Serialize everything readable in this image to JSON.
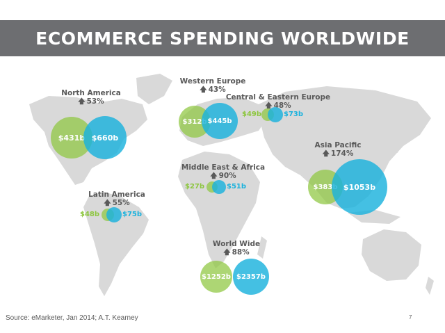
{
  "title": "ECOMMERCE SPENDING WORLDWIDE",
  "colors": {
    "title_bar": "#6d6e71",
    "spend_2013": "#8dc63f",
    "spend_2018": "#1bb2dd",
    "land": "#d9d9d9"
  },
  "regions": {
    "north_america": {
      "name": "North America",
      "growth": "53%",
      "value_a": "$431b",
      "value_b": "$660b"
    },
    "western_europe": {
      "name": "Western Europe",
      "growth": "43%",
      "value_a": "$312b",
      "value_b": "$445b"
    },
    "central_eastern_europe": {
      "name": "Central & Eastern Europe",
      "growth": "48%",
      "value_a": "$49b",
      "value_b": "$73b"
    },
    "asia_pacific": {
      "name": "Asia Pacific",
      "growth": "174%",
      "value_a": "$383b",
      "value_b": "$1053b"
    },
    "middle_east_africa": {
      "name": "Middle East & Africa",
      "growth": "90%",
      "value_a": "$27b",
      "value_b": "$51b"
    },
    "latin_america": {
      "name": "Latin America",
      "growth": "55%",
      "value_a": "$48b",
      "value_b": "$75b"
    },
    "world_wide": {
      "name": "World Wide",
      "growth": "88%",
      "value_a": "$1252b",
      "value_b": "$2357b"
    }
  },
  "growth_arrow": "🡅",
  "source": "Source: eMarketer, Jan 2014; A.T. Kearney",
  "page_number": "7"
}
